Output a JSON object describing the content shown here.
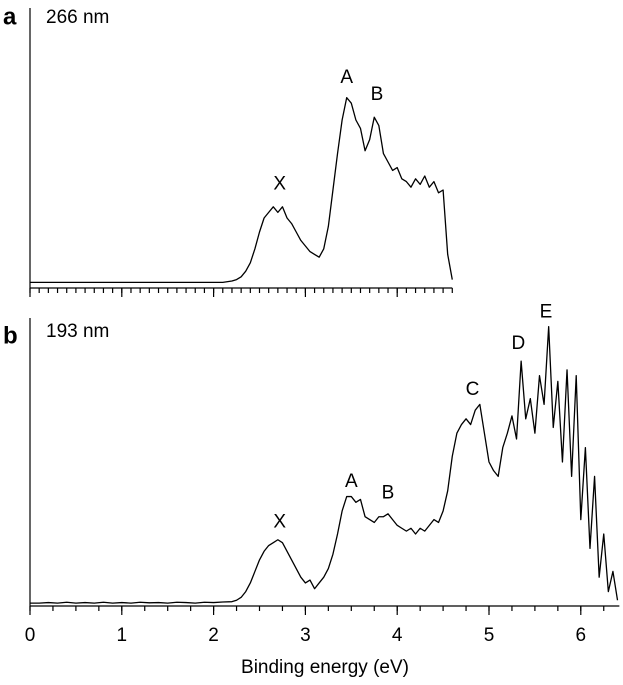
{
  "chart_data": [
    {
      "type": "line",
      "panel": "a",
      "subtitle": "266 nm",
      "color": "#000000",
      "x": [
        0,
        0.1,
        0.2,
        0.3,
        0.4,
        0.5,
        0.6,
        0.7,
        0.8,
        0.9,
        1.0,
        1.1,
        1.2,
        1.3,
        1.4,
        1.5,
        1.6,
        1.7,
        1.8,
        1.9,
        2.0,
        2.1,
        2.2,
        2.25,
        2.3,
        2.35,
        2.4,
        2.45,
        2.5,
        2.55,
        2.6,
        2.65,
        2.7,
        2.75,
        2.8,
        2.85,
        2.9,
        2.95,
        3.0,
        3.05,
        3.1,
        3.15,
        3.2,
        3.25,
        3.3,
        3.35,
        3.4,
        3.45,
        3.5,
        3.55,
        3.6,
        3.65,
        3.7,
        3.75,
        3.8,
        3.85,
        3.9,
        3.95,
        4.0,
        4.05,
        4.1,
        4.15,
        4.2,
        4.25,
        4.3,
        4.35,
        4.4,
        4.45,
        4.5,
        4.55,
        4.6
      ],
      "values": [
        0.02,
        0.02,
        0.02,
        0.02,
        0.02,
        0.02,
        0.02,
        0.02,
        0.02,
        0.02,
        0.02,
        0.02,
        0.02,
        0.02,
        0.02,
        0.02,
        0.02,
        0.02,
        0.02,
        0.02,
        0.02,
        0.02,
        0.025,
        0.03,
        0.04,
        0.06,
        0.09,
        0.14,
        0.2,
        0.25,
        0.27,
        0.29,
        0.27,
        0.29,
        0.25,
        0.23,
        0.2,
        0.17,
        0.15,
        0.13,
        0.12,
        0.11,
        0.14,
        0.22,
        0.35,
        0.48,
        0.6,
        0.68,
        0.66,
        0.6,
        0.57,
        0.49,
        0.53,
        0.61,
        0.58,
        0.48,
        0.45,
        0.42,
        0.43,
        0.39,
        0.38,
        0.36,
        0.39,
        0.37,
        0.4,
        0.36,
        0.38,
        0.34,
        0.35,
        0.12,
        0.03
      ],
      "xlim": [
        0,
        4.6
      ],
      "ylim": [
        0,
        1
      ],
      "xticks": [
        0,
        1,
        2,
        3,
        4
      ],
      "show_tick_labels": false,
      "xminor": 0.1,
      "annotations": [
        {
          "text": "X",
          "x": 2.72,
          "y": 0.37
        },
        {
          "text": "A",
          "x": 3.45,
          "y": 0.75
        },
        {
          "text": "B",
          "x": 3.78,
          "y": 0.69
        }
      ]
    },
    {
      "type": "line",
      "panel": "b",
      "subtitle": "193 nm",
      "color": "#000000",
      "xlabel": "Binding energy (eV)",
      "x": [
        0,
        0.1,
        0.2,
        0.3,
        0.4,
        0.5,
        0.6,
        0.7,
        0.8,
        0.9,
        1.0,
        1.1,
        1.2,
        1.3,
        1.4,
        1.5,
        1.6,
        1.7,
        1.8,
        1.9,
        2.0,
        2.1,
        2.2,
        2.25,
        2.3,
        2.35,
        2.4,
        2.45,
        2.5,
        2.55,
        2.6,
        2.65,
        2.7,
        2.75,
        2.8,
        2.85,
        2.9,
        2.95,
        3.0,
        3.05,
        3.1,
        3.15,
        3.2,
        3.25,
        3.3,
        3.35,
        3.4,
        3.45,
        3.5,
        3.55,
        3.6,
        3.65,
        3.7,
        3.75,
        3.8,
        3.85,
        3.9,
        3.95,
        4.0,
        4.05,
        4.1,
        4.15,
        4.2,
        4.25,
        4.3,
        4.35,
        4.4,
        4.45,
        4.5,
        4.55,
        4.6,
        4.65,
        4.7,
        4.75,
        4.8,
        4.85,
        4.9,
        4.95,
        5.0,
        5.05,
        5.1,
        5.15,
        5.2,
        5.25,
        5.3,
        5.35,
        5.4,
        5.45,
        5.5,
        5.55,
        5.6,
        5.65,
        5.7,
        5.75,
        5.8,
        5.85,
        5.9,
        5.95,
        6.0,
        6.05,
        6.1,
        6.15,
        6.2,
        6.25,
        6.3,
        6.35,
        6.4
      ],
      "values": [
        0.01,
        0.01,
        0.012,
        0.01,
        0.013,
        0.01,
        0.012,
        0.01,
        0.013,
        0.01,
        0.012,
        0.01,
        0.013,
        0.011,
        0.012,
        0.01,
        0.013,
        0.012,
        0.01,
        0.013,
        0.012,
        0.014,
        0.015,
        0.02,
        0.03,
        0.05,
        0.08,
        0.12,
        0.16,
        0.19,
        0.21,
        0.22,
        0.23,
        0.22,
        0.19,
        0.16,
        0.13,
        0.1,
        0.08,
        0.09,
        0.06,
        0.08,
        0.1,
        0.13,
        0.18,
        0.25,
        0.33,
        0.38,
        0.38,
        0.36,
        0.37,
        0.31,
        0.3,
        0.29,
        0.31,
        0.31,
        0.32,
        0.3,
        0.28,
        0.27,
        0.26,
        0.27,
        0.25,
        0.27,
        0.26,
        0.28,
        0.3,
        0.29,
        0.33,
        0.4,
        0.52,
        0.6,
        0.63,
        0.65,
        0.63,
        0.68,
        0.7,
        0.6,
        0.5,
        0.47,
        0.45,
        0.55,
        0.6,
        0.66,
        0.58,
        0.85,
        0.65,
        0.72,
        0.6,
        0.8,
        0.7,
        0.97,
        0.62,
        0.78,
        0.5,
        0.82,
        0.45,
        0.8,
        0.3,
        0.55,
        0.2,
        0.45,
        0.1,
        0.25,
        0.05,
        0.12,
        0.02
      ],
      "xlim": [
        0,
        6.42
      ],
      "ylim": [
        0,
        1
      ],
      "xticks": [
        0,
        1,
        2,
        3,
        4,
        5,
        6
      ],
      "show_tick_labels": true,
      "xminor": 0.25,
      "annotations": [
        {
          "text": "X",
          "x": 2.72,
          "y": 0.29
        },
        {
          "text": "A",
          "x": 3.5,
          "y": 0.43
        },
        {
          "text": "B",
          "x": 3.9,
          "y": 0.39
        },
        {
          "text": "C",
          "x": 4.82,
          "y": 0.75
        },
        {
          "text": "D",
          "x": 5.32,
          "y": 0.91
        },
        {
          "text": "E",
          "x": 5.62,
          "y": 1.02
        }
      ]
    }
  ]
}
